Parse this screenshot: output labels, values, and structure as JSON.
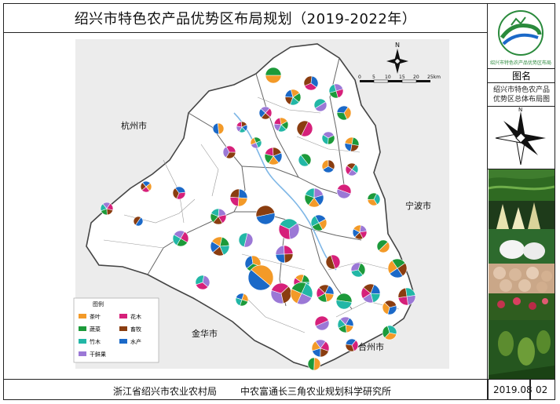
{
  "title": "绍兴市特色农产品优势区布局规划（2019-2022年）",
  "logo": {
    "icon": "seal-logo-icon",
    "text": "绍兴市特色农产品优势区布局"
  },
  "side": {
    "label": "图名",
    "description_line1": "绍兴市特色农产品",
    "description_line2": "优势区总体布局图"
  },
  "footer": {
    "org1": "浙江省绍兴市农业农村局",
    "org2": "中农富通长三角农业规划科学研究所",
    "date": "2019.08",
    "sheet": "02"
  },
  "map": {
    "neighbors": {
      "hangzhou": "杭州市",
      "ningbo": "宁波市",
      "jinhua": "金华市",
      "taizhou": "台州市"
    },
    "scale": {
      "ticks": [
        "0",
        "5",
        "10",
        "15",
        "20",
        "25km"
      ]
    },
    "legend": {
      "title": "图例",
      "items": [
        {
          "label": "茶叶",
          "color": "#f39a28"
        },
        {
          "label": "花木",
          "color": "#d6207a"
        },
        {
          "label": "蔬菜",
          "color": "#1c9a3a"
        },
        {
          "label": "畜牧",
          "color": "#8a3d10"
        },
        {
          "label": "竹木",
          "color": "#22b7a6"
        },
        {
          "label": "水产",
          "color": "#1b69c8"
        },
        {
          "label": "干鲜果",
          "color": "#9b78d6"
        }
      ]
    }
  },
  "colors": {
    "tea": "#f39a28",
    "flower": "#d6207a",
    "veg": "#1c9a3a",
    "livestock": "#8a3d10",
    "bamboo": "#22b7a6",
    "aqua": "#1b69c8",
    "fruit": "#9b78d6"
  }
}
